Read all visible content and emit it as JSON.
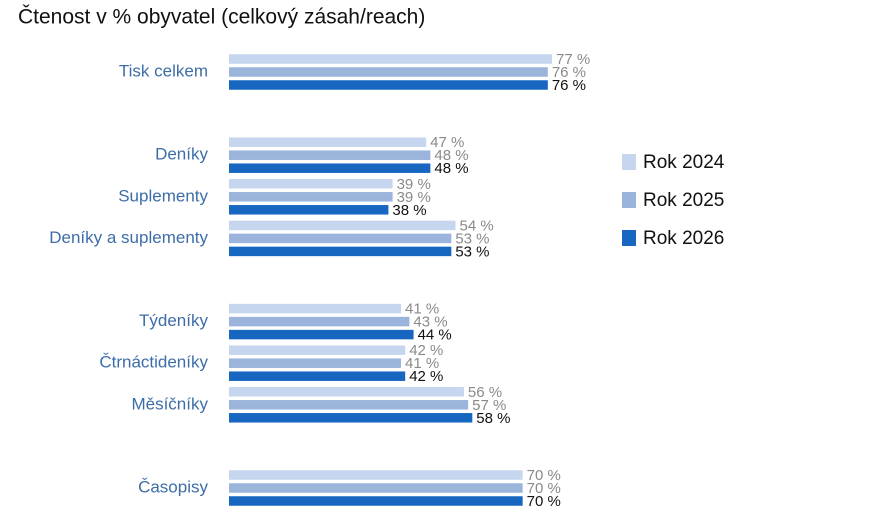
{
  "chart_data": {
    "type": "hbar",
    "title": "Čtenost v % obyvatel (celkový zásah/reach)",
    "categories": [
      "Tisk celkem",
      null,
      "Deníky",
      "Suplementy",
      "Deníky a suplementy",
      null,
      "Týdeníky",
      "Čtrnáctideníky",
      "Měsíčníky",
      null,
      "Časopisy"
    ],
    "series": [
      {
        "name": "Rok 2024",
        "color": "#c6d6ee",
        "values": [
          77,
          null,
          47,
          39,
          54,
          null,
          41,
          42,
          56,
          null,
          70
        ],
        "value_labels": [
          "77 %",
          null,
          "47 %",
          "39 %",
          "54 %",
          null,
          "41 %",
          "42 %",
          "56 %",
          null,
          "70 %"
        ]
      },
      {
        "name": "Rok 2025",
        "color": "#9ab4db",
        "values": [
          76,
          null,
          48,
          39,
          53,
          null,
          43,
          41,
          57,
          null,
          70
        ],
        "value_labels": [
          "76 %",
          null,
          "48 %",
          "39 %",
          "53 %",
          null,
          "43 %",
          "41 %",
          "57 %",
          null,
          "70 %"
        ]
      },
      {
        "name": "Rok 2026",
        "color": "#1767c1",
        "values": [
          76,
          null,
          48,
          38,
          53,
          null,
          44,
          42,
          58,
          null,
          70
        ],
        "value_labels": [
          "76 %",
          null,
          "48 %",
          "38 %",
          "53 %",
          null,
          "44 %",
          "42 %",
          "58 %",
          null,
          "70 %"
        ]
      }
    ],
    "xlim": [
      0,
      100
    ],
    "legend": "right"
  }
}
